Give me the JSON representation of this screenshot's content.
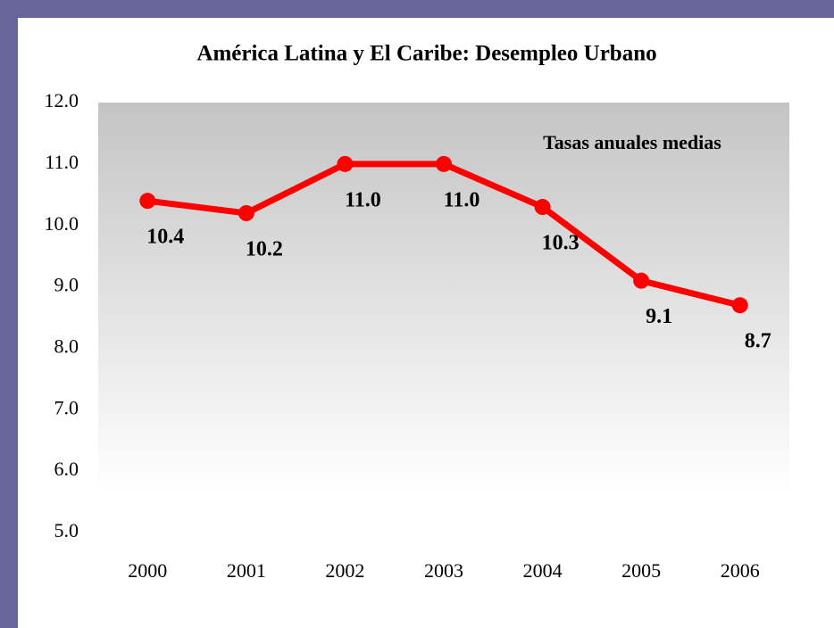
{
  "chart_data": {
    "type": "line",
    "title": "América Latina y El Caribe: Desempleo Urbano",
    "annotation": "Tasas anuales medias",
    "categories": [
      "2000",
      "2001",
      "2002",
      "2003",
      "2004",
      "2005",
      "2006"
    ],
    "series": [
      {
        "name": "Desempleo urbano",
        "color": "#ff0000",
        "values": [
          10.4,
          10.2,
          11.0,
          11.0,
          10.3,
          9.1,
          8.7
        ],
        "value_labels": [
          "10.4",
          "10.2",
          "11.0",
          "11.0",
          "10.3",
          "9.1",
          "8.7"
        ]
      }
    ],
    "ylim": [
      5,
      12
    ],
    "yticks": [
      {
        "value": 5,
        "label": "5.0"
      },
      {
        "value": 6,
        "label": "6.0"
      },
      {
        "value": 7,
        "label": "7.0"
      },
      {
        "value": 8,
        "label": "8.0"
      },
      {
        "value": 9,
        "label": "9.0"
      },
      {
        "value": 10,
        "label": "10.0"
      },
      {
        "value": 11,
        "label": "11.0"
      },
      {
        "value": 12,
        "label": "12.0"
      }
    ],
    "grid": false
  }
}
